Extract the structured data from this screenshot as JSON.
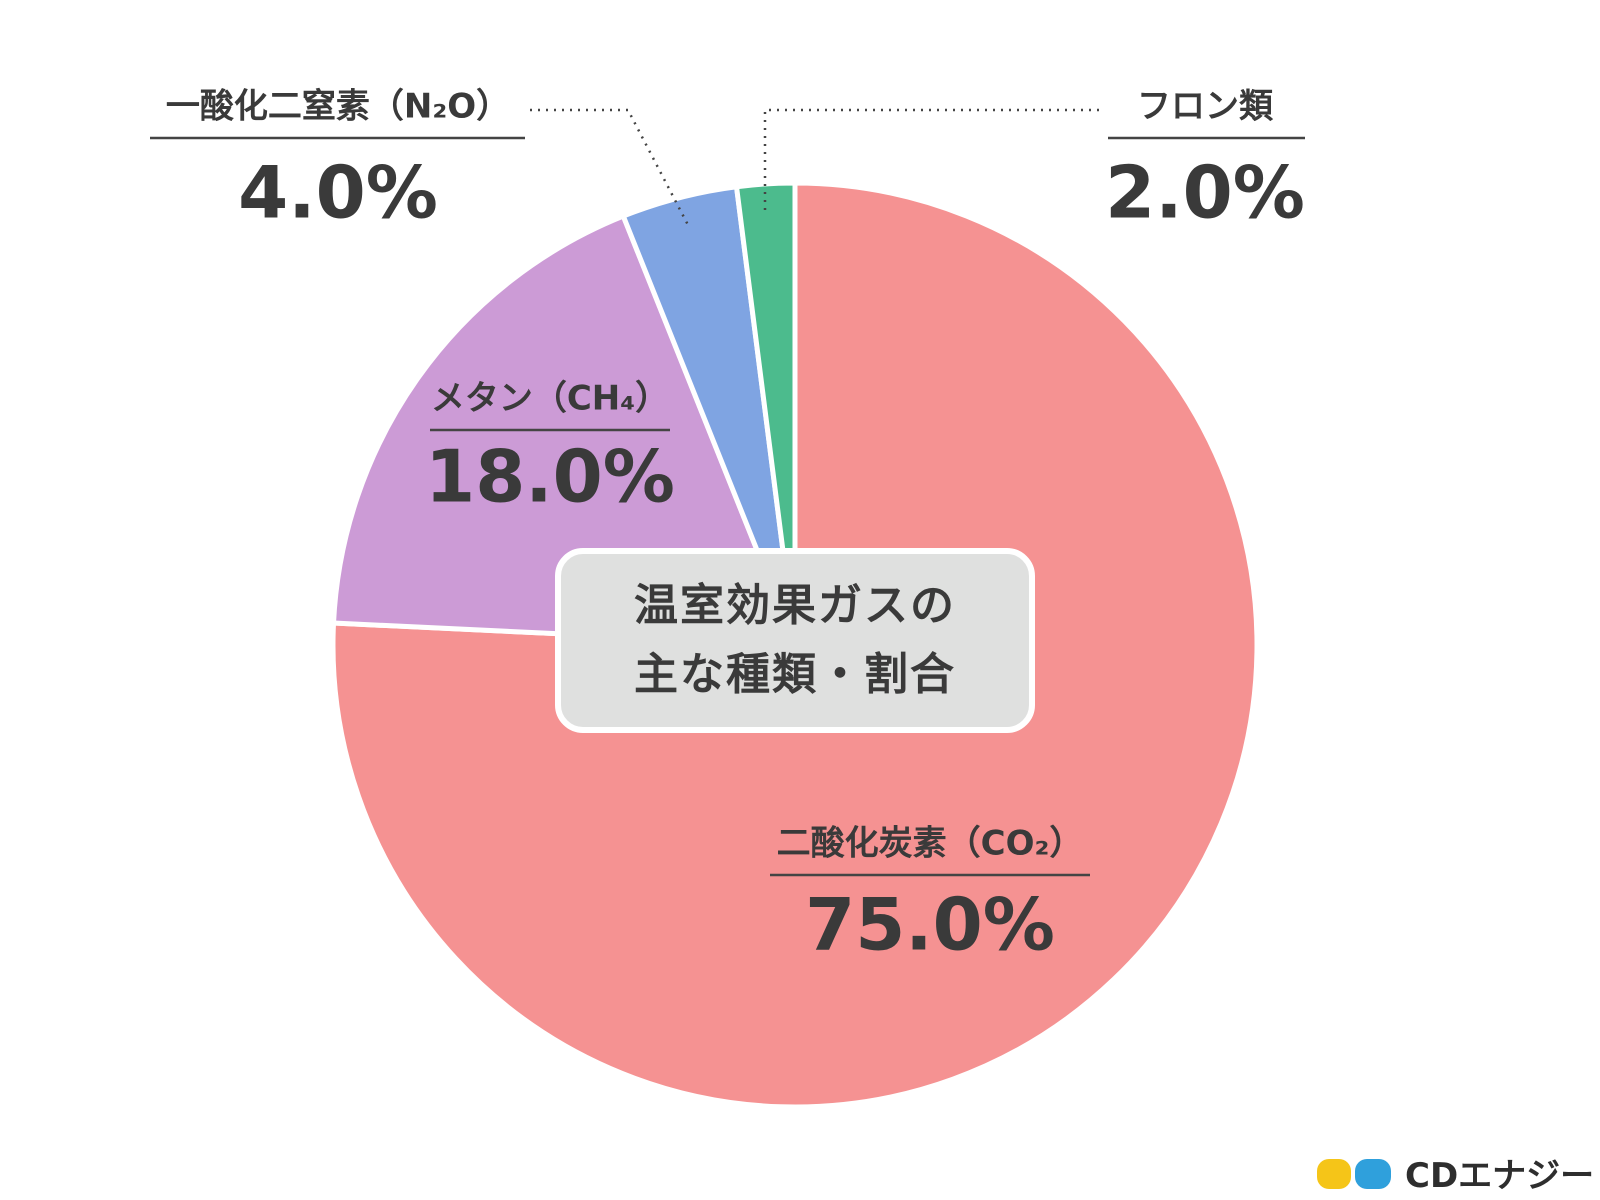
{
  "chart_data": {
    "type": "pie",
    "title": "温室効果ガスの主な種類・割合",
    "categories": [
      "二酸化炭素（CO₂）",
      "メタン（CH₄）",
      "一酸化二窒素（N₂O）",
      "フロン類"
    ],
    "values": [
      75,
      18,
      4,
      2
    ],
    "value_labels": [
      "75.0%",
      "18.0%",
      "4.0%",
      "2.0%"
    ],
    "colors": [
      "#f59292",
      "#cc9bd6",
      "#7fa4e2",
      "#4cbb8d"
    ]
  },
  "logo": "CDエナジー"
}
